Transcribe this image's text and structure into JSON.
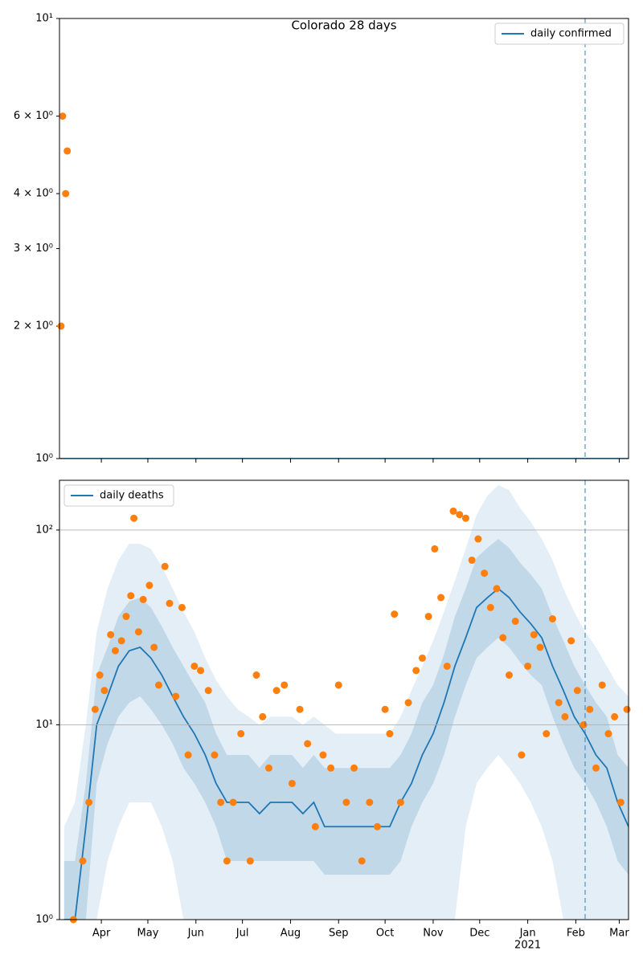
{
  "chart_data": [
    {
      "type": "line",
      "title": "Colorado 28 days",
      "xlim": [
        "2020-03-05",
        "2021-03-07"
      ],
      "ylim": [
        1,
        10
      ],
      "log_y": true,
      "grid": false,
      "yticks": [
        {
          "value": 1,
          "label": "10⁰"
        },
        {
          "value": 2,
          "label": "2 × 10⁰"
        },
        {
          "value": 3,
          "label": "3 × 10⁰"
        },
        {
          "value": 4,
          "label": "4 × 10⁰"
        },
        {
          "value": 6,
          "label": "6 × 10⁰"
        },
        {
          "value": 10,
          "label": "10¹"
        }
      ],
      "x": [
        "2020-03-05",
        "2021-03-07"
      ],
      "series": [
        {
          "name": "daily confirmed",
          "color": "#1f77b4",
          "values": [
            1,
            1
          ]
        }
      ],
      "points": {
        "color": "#ff7f0e",
        "x": [
          "2020-03-06",
          "2020-03-07",
          "2020-03-09",
          "2020-03-10"
        ],
        "values": [
          2,
          6,
          4,
          5
        ]
      },
      "vline": "2021-02-07",
      "legend": "upper right"
    },
    {
      "type": "line",
      "xlim": [
        "2020-03-05",
        "2021-03-07"
      ],
      "ylim": [
        1,
        180
      ],
      "log_y": true,
      "grid": true,
      "yticks": [
        {
          "value": 1,
          "label": "10⁰"
        },
        {
          "value": 10,
          "label": "10¹"
        },
        {
          "value": 100,
          "label": "10²"
        }
      ],
      "xticks": [
        {
          "value": "2020-04-01",
          "label": "Apr"
        },
        {
          "value": "2020-05-01",
          "label": "May"
        },
        {
          "value": "2020-06-01",
          "label": "Jun"
        },
        {
          "value": "2020-07-01",
          "label": "Jul"
        },
        {
          "value": "2020-08-01",
          "label": "Aug"
        },
        {
          "value": "2020-09-01",
          "label": "Sep"
        },
        {
          "value": "2020-10-01",
          "label": "Oct"
        },
        {
          "value": "2020-11-01",
          "label": "Nov"
        },
        {
          "value": "2020-12-01",
          "label": "Dec"
        },
        {
          "value": "2021-01-01",
          "label": "Jan"
        },
        {
          "value": "2021-02-01",
          "label": "Feb"
        },
        {
          "value": "2021-03-01",
          "label": "Mar"
        }
      ],
      "x_year_label": "2021",
      "x": [
        "2020-03-08",
        "2020-03-15",
        "2020-03-22",
        "2020-03-29",
        "2020-04-05",
        "2020-04-12",
        "2020-04-19",
        "2020-04-26",
        "2020-05-03",
        "2020-05-10",
        "2020-05-17",
        "2020-05-24",
        "2020-05-31",
        "2020-06-07",
        "2020-06-14",
        "2020-06-21",
        "2020-06-28",
        "2020-07-05",
        "2020-07-12",
        "2020-07-19",
        "2020-07-26",
        "2020-08-02",
        "2020-08-09",
        "2020-08-16",
        "2020-08-23",
        "2020-08-30",
        "2020-09-06",
        "2020-09-13",
        "2020-09-20",
        "2020-09-27",
        "2020-10-04",
        "2020-10-11",
        "2020-10-18",
        "2020-10-25",
        "2020-11-01",
        "2020-11-08",
        "2020-11-15",
        "2020-11-22",
        "2020-11-29",
        "2020-12-06",
        "2020-12-13",
        "2020-12-20",
        "2020-12-27",
        "2021-01-03",
        "2021-01-10",
        "2021-01-17",
        "2021-01-24",
        "2021-01-31",
        "2021-02-07",
        "2021-02-14",
        "2021-02-21",
        "2021-02-28",
        "2021-03-07"
      ],
      "series": [
        {
          "name": "daily deaths",
          "color": "#1f77b4",
          "values": [
            1,
            1,
            3,
            10,
            14,
            20,
            24,
            25,
            22,
            18,
            14,
            11,
            9,
            7,
            5,
            4,
            4,
            4,
            3.5,
            4,
            4,
            4,
            3.5,
            4,
            3,
            3,
            3,
            3,
            3,
            3,
            3,
            4,
            5,
            7,
            9,
            13,
            20,
            28,
            40,
            45,
            50,
            45,
            38,
            33,
            28,
            20,
            15,
            11,
            9,
            7,
            6,
            4,
            3
          ]
        }
      ],
      "bands": [
        {
          "color": "#1f77b4",
          "opacity": 0.12,
          "upper": [
            3,
            4,
            10,
            30,
            50,
            70,
            85,
            85,
            80,
            65,
            50,
            38,
            30,
            22,
            17,
            14,
            12,
            11,
            10,
            11,
            11,
            11,
            10,
            11,
            10,
            9,
            9,
            9,
            9,
            9,
            9,
            11,
            15,
            20,
            27,
            38,
            55,
            80,
            120,
            150,
            170,
            160,
            130,
            110,
            90,
            70,
            50,
            38,
            30,
            25,
            20,
            16,
            14
          ],
          "lower": [
            1,
            1,
            1,
            1,
            2,
            3,
            4,
            4,
            4,
            3,
            2,
            1,
            1,
            1,
            1,
            1,
            1,
            1,
            1,
            1,
            1,
            1,
            1,
            1,
            1,
            1,
            1,
            1,
            1,
            1,
            1,
            1,
            1,
            1,
            1,
            1,
            1,
            3,
            5,
            6,
            7,
            6,
            5,
            4,
            3,
            2,
            1,
            1,
            1,
            1,
            1,
            1,
            1
          ]
        },
        {
          "color": "#1f77b4",
          "opacity": 0.18,
          "upper": [
            2,
            2,
            5,
            18,
            25,
            36,
            43,
            45,
            40,
            32,
            25,
            20,
            16,
            13,
            9,
            7,
            7,
            7,
            6,
            7,
            7,
            7,
            6,
            7,
            6,
            6,
            6,
            6,
            6,
            6,
            6,
            7,
            9,
            13,
            16,
            23,
            36,
            50,
            72,
            81,
            90,
            81,
            68,
            59,
            50,
            36,
            27,
            20,
            16,
            13,
            11,
            7,
            6
          ],
          "lower": [
            1,
            1,
            1,
            5,
            8,
            11,
            13,
            14,
            12,
            10,
            8,
            6,
            5,
            4,
            3,
            2,
            2,
            2,
            2,
            2,
            2,
            2,
            2,
            2,
            1.7,
            1.7,
            1.7,
            1.7,
            1.7,
            1.7,
            1.7,
            2,
            3,
            4,
            5,
            7,
            11,
            16,
            22,
            25,
            28,
            25,
            21,
            18,
            16,
            11,
            8,
            6,
            5,
            4,
            3,
            2,
            1.7
          ]
        }
      ],
      "points": {
        "color": "#ff7f0e",
        "x": [
          "2020-03-14",
          "2020-03-20",
          "2020-03-24",
          "2020-03-28",
          "2020-03-31",
          "2020-04-03",
          "2020-04-07",
          "2020-04-10",
          "2020-04-14",
          "2020-04-17",
          "2020-04-20",
          "2020-04-22",
          "2020-04-25",
          "2020-04-28",
          "2020-05-02",
          "2020-05-05",
          "2020-05-08",
          "2020-05-12",
          "2020-05-15",
          "2020-05-19",
          "2020-05-23",
          "2020-05-27",
          "2020-05-31",
          "2020-06-04",
          "2020-06-09",
          "2020-06-13",
          "2020-06-17",
          "2020-06-21",
          "2020-06-25",
          "2020-06-30",
          "2020-07-06",
          "2020-07-10",
          "2020-07-14",
          "2020-07-18",
          "2020-07-23",
          "2020-07-28",
          "2020-08-02",
          "2020-08-07",
          "2020-08-12",
          "2020-08-17",
          "2020-08-22",
          "2020-08-27",
          "2020-09-01",
          "2020-09-06",
          "2020-09-11",
          "2020-09-16",
          "2020-09-21",
          "2020-09-26",
          "2020-10-01",
          "2020-10-04",
          "2020-10-07",
          "2020-10-11",
          "2020-10-16",
          "2020-10-21",
          "2020-10-25",
          "2020-10-29",
          "2020-11-02",
          "2020-11-06",
          "2020-11-10",
          "2020-11-14",
          "2020-11-18",
          "2020-11-22",
          "2020-11-26",
          "2020-11-30",
          "2020-12-04",
          "2020-12-08",
          "2020-12-12",
          "2020-12-16",
          "2020-12-20",
          "2020-12-24",
          "2020-12-28",
          "2021-01-01",
          "2021-01-05",
          "2021-01-09",
          "2021-01-13",
          "2021-01-17",
          "2021-01-21",
          "2021-01-25",
          "2021-01-29",
          "2021-02-02",
          "2021-02-06",
          "2021-02-10",
          "2021-02-14",
          "2021-02-18",
          "2021-02-22",
          "2021-02-26",
          "2021-03-02",
          "2021-03-06"
        ],
        "values": [
          1,
          2,
          4,
          12,
          18,
          15,
          29,
          24,
          27,
          36,
          46,
          115,
          30,
          44,
          52,
          25,
          16,
          65,
          42,
          14,
          40,
          7,
          20,
          19,
          15,
          7,
          4,
          2,
          4,
          9,
          2,
          18,
          11,
          6,
          15,
          16,
          5,
          12,
          8,
          3,
          7,
          6,
          16,
          4,
          6,
          2,
          4,
          3,
          12,
          9,
          37,
          4,
          13,
          19,
          22,
          36,
          80,
          45,
          20,
          125,
          120,
          115,
          70,
          90,
          60,
          40,
          50,
          28,
          18,
          34,
          7,
          20,
          29,
          25,
          9,
          35,
          13,
          11,
          27,
          15,
          10,
          12,
          6,
          16,
          9,
          11,
          4,
          12
        ]
      },
      "vline": "2021-02-07",
      "legend": "upper left"
    }
  ]
}
